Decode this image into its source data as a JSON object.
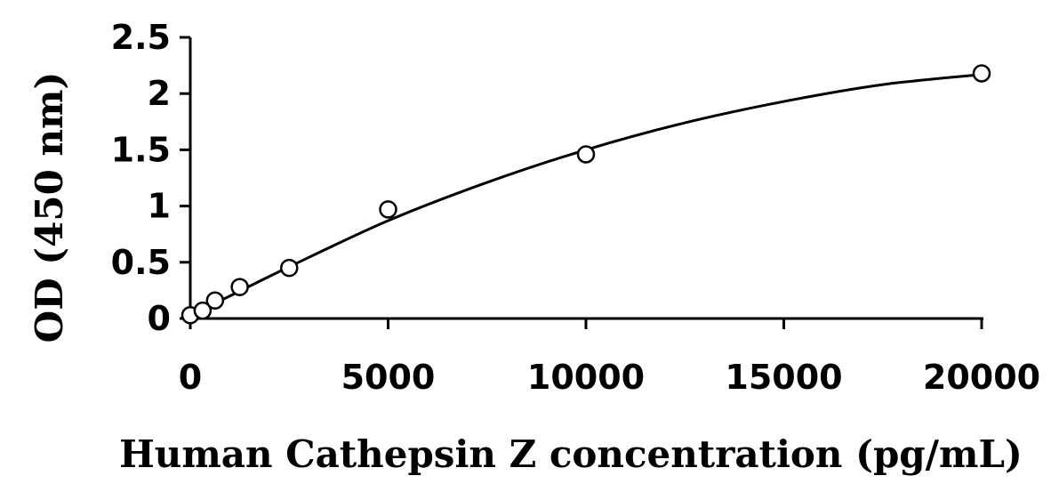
{
  "chart_data": {
    "type": "scatter",
    "title": "",
    "xlabel": "Human Cathepsin Z concentration (pg/mL)",
    "ylabel": "OD (450 nm)",
    "xlim": [
      0,
      20000
    ],
    "ylim": [
      0,
      2.5
    ],
    "x_ticks": [
      "0",
      "5000",
      "10000",
      "15000",
      "20000"
    ],
    "y_ticks": [
      "0",
      "0.5",
      "1",
      "1.5",
      "2",
      "2.5"
    ],
    "grid": false,
    "legend": "none",
    "series": [
      {
        "marker": "open-circle",
        "color": "#000000",
        "points": [
          {
            "x": 0,
            "y": 0.03
          },
          {
            "x": 312.5,
            "y": 0.07
          },
          {
            "x": 625,
            "y": 0.16
          },
          {
            "x": 1250,
            "y": 0.28
          },
          {
            "x": 2500,
            "y": 0.45
          },
          {
            "x": 5000,
            "y": 0.97
          },
          {
            "x": 10000,
            "y": 1.46
          },
          {
            "x": 20000,
            "y": 2.18
          }
        ]
      }
    ],
    "fit_curve": {
      "style": "smooth-line",
      "color": "#000000",
      "points": [
        {
          "x": 0,
          "y": 0.03
        },
        {
          "x": 1000,
          "y": 0.2
        },
        {
          "x": 2500,
          "y": 0.46
        },
        {
          "x": 5000,
          "y": 0.87
        },
        {
          "x": 7500,
          "y": 1.21
        },
        {
          "x": 10000,
          "y": 1.5
        },
        {
          "x": 12500,
          "y": 1.74
        },
        {
          "x": 15000,
          "y": 1.93
        },
        {
          "x": 17500,
          "y": 2.08
        },
        {
          "x": 20000,
          "y": 2.17
        }
      ]
    }
  }
}
